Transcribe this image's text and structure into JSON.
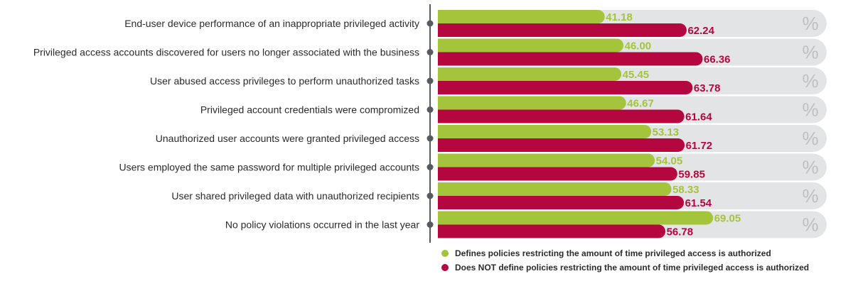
{
  "chart_data": {
    "type": "bar",
    "orientation": "horizontal",
    "categories": [
      "End-user device performance of an inappropriate privileged activity",
      "Privileged access accounts discovered for users no longer associated with the business",
      "User abused access privileges to perform unauthorized tasks",
      "Privileged account credentials were compromized",
      "Unauthorized user accounts were granted privileged access",
      "Users employed the same password for multiple privileged accounts",
      "User shared privileged data with unauthorized recipients",
      "No policy violations occurred in the last year"
    ],
    "series": [
      {
        "name": "Defines policies restricting the amount of time privileged access is authorized",
        "color": "#a4c43c",
        "values": [
          41.18,
          46.0,
          45.45,
          46.67,
          53.13,
          54.05,
          58.33,
          69.05
        ],
        "labels": [
          "41.18",
          "46.00",
          "45.45",
          "46.67",
          "53.13",
          "54.05",
          "58.33",
          "69.05"
        ]
      },
      {
        "name": "Does NOT define policies restricting the amount of time privileged access is authorized",
        "color": "#b5073f",
        "values": [
          62.24,
          66.36,
          63.78,
          61.64,
          61.72,
          59.85,
          61.54,
          56.78
        ],
        "labels": [
          "62.24",
          "66.36",
          "63.78",
          "61.64",
          "61.72",
          "59.85",
          "61.54",
          "56.78"
        ]
      }
    ],
    "unit_symbol": "%",
    "xlim": [
      0,
      100
    ],
    "track_color": "#e3e4e5",
    "axis_color": "#555b61",
    "legend_position": "bottom-right"
  }
}
